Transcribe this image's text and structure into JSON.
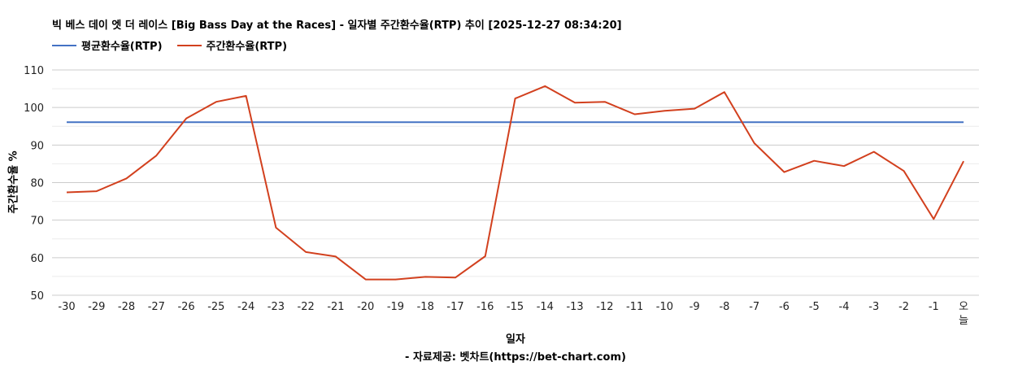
{
  "chart_data": {
    "type": "line",
    "title": "빅 베스 데이 엣 더 레이스 [Big Bass Day at the Races] - 일자별 주간환수율(RTP) 추이 [2025-12-27 08:34:20]",
    "xlabel": "일자",
    "ylabel": "주간환수율 %",
    "source_note": "- 자료제공: 벳차트(https://bet-chart.com)",
    "categories": [
      "-30",
      "-29",
      "-28",
      "-27",
      "-26",
      "-25",
      "-24",
      "-23",
      "-22",
      "-21",
      "-20",
      "-19",
      "-18",
      "-17",
      "-16",
      "-15",
      "-14",
      "-13",
      "-12",
      "-11",
      "-10",
      "-9",
      "-8",
      "-7",
      "-6",
      "-5",
      "-4",
      "-3",
      "-2",
      "-1",
      "오늘"
    ],
    "ylim": [
      50,
      110
    ],
    "yticks": [
      50,
      60,
      70,
      80,
      90,
      100,
      110
    ],
    "grid": true,
    "legend_position": "top-left",
    "series": [
      {
        "name": "평균환수율(RTP)",
        "color": "#4472c4",
        "values": [
          96.1,
          96.1,
          96.1,
          96.1,
          96.1,
          96.1,
          96.1,
          96.1,
          96.1,
          96.1,
          96.1,
          96.1,
          96.1,
          96.1,
          96.1,
          96.1,
          96.1,
          96.1,
          96.1,
          96.1,
          96.1,
          96.1,
          96.1,
          96.1,
          96.1,
          96.1,
          96.1,
          96.1,
          96.1,
          96.1,
          96.1
        ]
      },
      {
        "name": "주간환수율(RTP)",
        "color": "#d2401e",
        "values": [
          77.4,
          77.7,
          81.1,
          87.2,
          97.1,
          101.5,
          103.1,
          68.0,
          61.5,
          60.3,
          54.2,
          54.2,
          54.9,
          54.7,
          60.4,
          102.4,
          105.7,
          101.3,
          101.5,
          98.2,
          99.1,
          99.7,
          104.1,
          90.5,
          82.8,
          85.8,
          84.4,
          88.2,
          83.1,
          70.3,
          85.7
        ]
      }
    ]
  }
}
